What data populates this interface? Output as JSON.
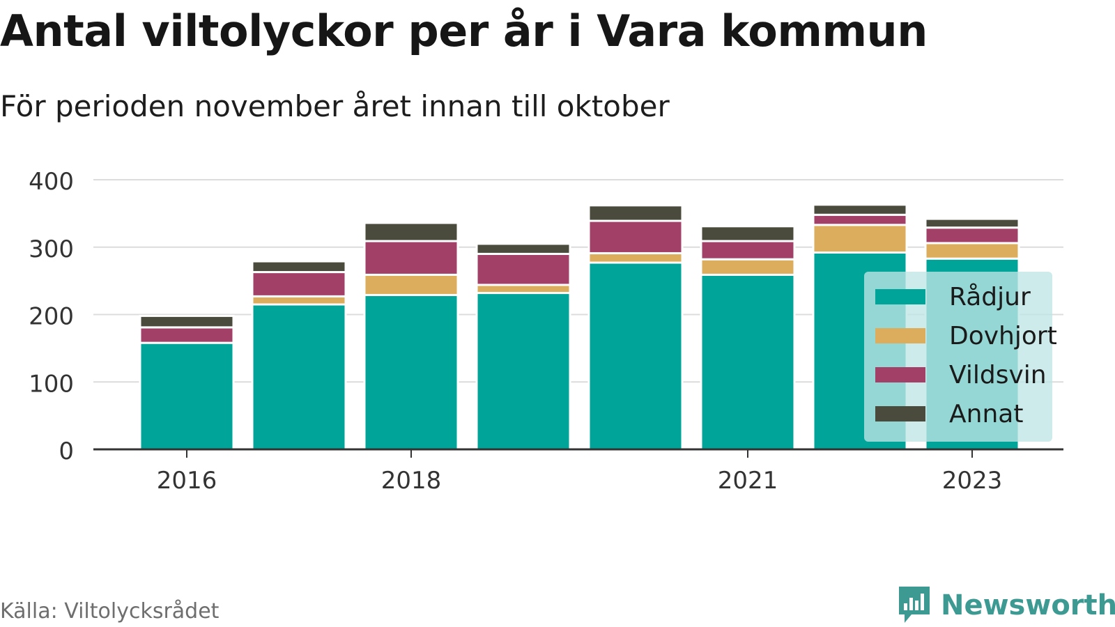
{
  "title": "Antal viltolyckor per år i Vara kommun",
  "subtitle": "För perioden november året innan till oktober",
  "source": "Källa: Viltolycksrådet",
  "brand": {
    "name": "Newsworthy",
    "icon": "newsworthy-chart-icon",
    "color": "#3d9a92"
  },
  "chart_data": {
    "type": "bar",
    "stacked": true,
    "categories": [
      "2016",
      "2017",
      "2018",
      "2019",
      "2020",
      "2021",
      "2022",
      "2023"
    ],
    "x_tick_labels": [
      "2016",
      "",
      "2018",
      "",
      "",
      "2021",
      "",
      "2023"
    ],
    "series": [
      {
        "name": "Rådjur",
        "color": "#00a499",
        "values": [
          158,
          215,
          229,
          232,
          277,
          259,
          292,
          283
        ]
      },
      {
        "name": "Dovhjort",
        "color": "#dbad5c",
        "values": [
          0,
          12,
          30,
          12,
          14,
          23,
          41,
          23
        ]
      },
      {
        "name": "Vildsvin",
        "color": "#a24068",
        "values": [
          23,
          36,
          50,
          46,
          48,
          27,
          15,
          23
        ]
      },
      {
        "name": "Annat",
        "color": "#4b4b3d",
        "values": [
          17,
          16,
          27,
          15,
          23,
          22,
          15,
          13
        ]
      }
    ],
    "ylim": [
      0,
      400
    ],
    "yticks": [
      0,
      100,
      200,
      300,
      400
    ],
    "grid": true,
    "legend_position": "right"
  }
}
